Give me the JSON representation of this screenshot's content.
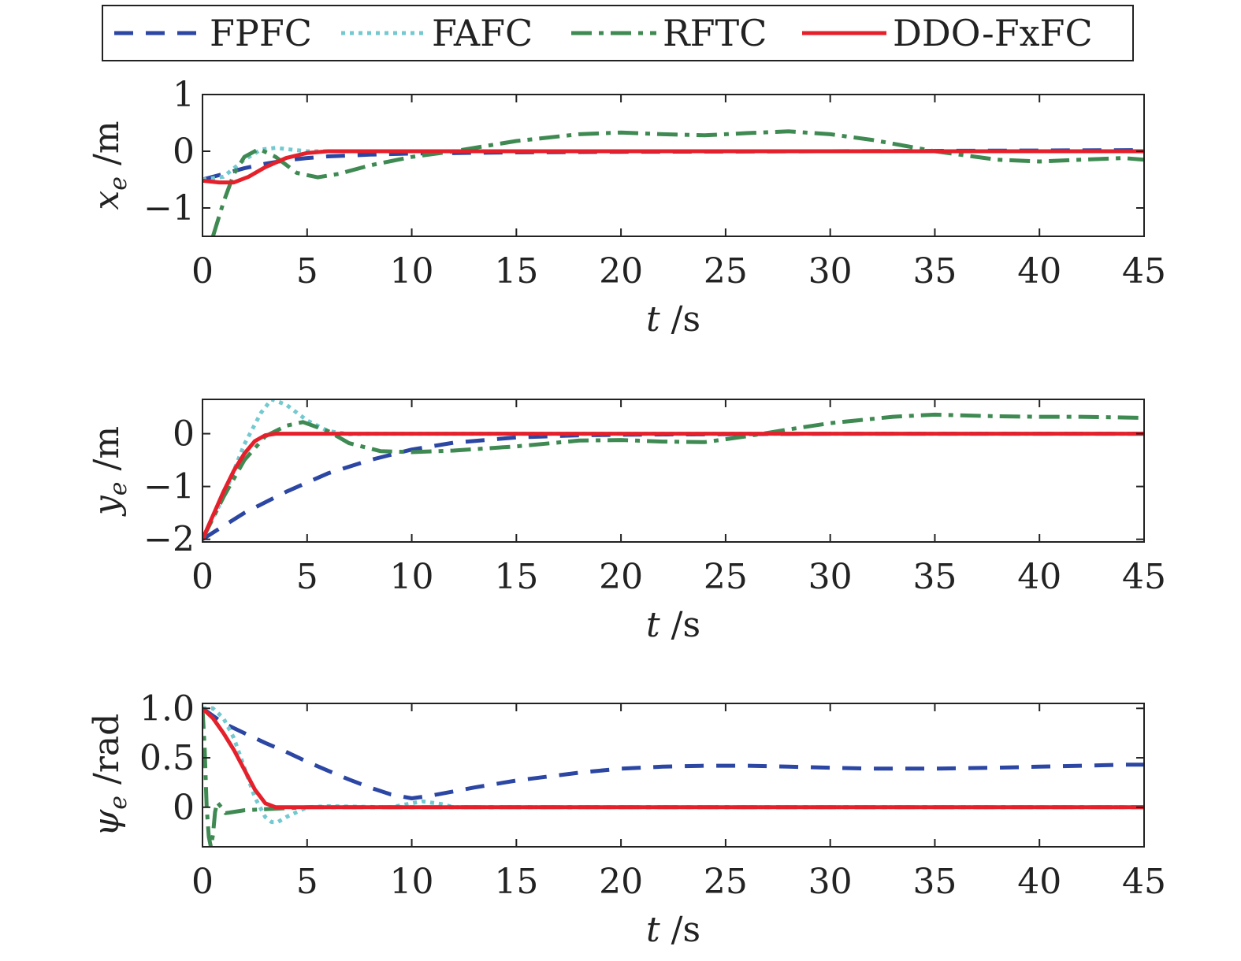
{
  "legend": [
    {
      "name": "FPFC",
      "color": "#2b46a3",
      "dash": "24 16",
      "width": 5
    },
    {
      "name": "FAFC",
      "color": "#72c9cf",
      "dash": "5 6",
      "width": 5
    },
    {
      "name": "RFTC",
      "color": "#3f8a52",
      "dash": "26 9 6 9",
      "width": 5
    },
    {
      "name": "DDO-FxFC",
      "color": "#e5202b",
      "dash": "",
      "width": 5
    }
  ],
  "chart_data": [
    {
      "type": "line",
      "xlabel": "t /s",
      "ylabel": "x_e /m",
      "ylabel_symbol": "x",
      "ylabel_sub": "e",
      "ylabel_unit": " /m",
      "xlim": [
        0,
        45
      ],
      "ylim": [
        -1.5,
        1
      ],
      "xticks": [
        0,
        5,
        10,
        15,
        20,
        25,
        30,
        35,
        40,
        45
      ],
      "yticks": [
        -1,
        0,
        1
      ],
      "ytick_labels": [
        "−1",
        "0",
        "1"
      ],
      "series": [
        {
          "name": "FPFC",
          "x": [
            0,
            1,
            2,
            3,
            4,
            5,
            6,
            8,
            10,
            15,
            20,
            30,
            45
          ],
          "y": [
            -0.5,
            -0.4,
            -0.3,
            -0.22,
            -0.16,
            -0.12,
            -0.09,
            -0.06,
            -0.04,
            -0.02,
            -0.01,
            0,
            0.02
          ]
        },
        {
          "name": "FAFC",
          "x": [
            0,
            1,
            2,
            2.8,
            3.5,
            4.2,
            5,
            6,
            8,
            45
          ],
          "y": [
            -0.5,
            -0.45,
            -0.15,
            0.03,
            0.06,
            0.03,
            0.0,
            0,
            0,
            0
          ]
        },
        {
          "name": "RFTC",
          "x": [
            0.5,
            1,
            1.5,
            2,
            2.7,
            3.5,
            4.5,
            5.5,
            6.5,
            8,
            10,
            12,
            15,
            18,
            20,
            22,
            24,
            26,
            28,
            30,
            32,
            35,
            38,
            40,
            42,
            44,
            45
          ],
          "y": [
            -1.5,
            -0.9,
            -0.4,
            -0.1,
            0.04,
            -0.1,
            -0.38,
            -0.46,
            -0.4,
            -0.25,
            -0.1,
            0.0,
            0.18,
            0.3,
            0.33,
            0.3,
            0.28,
            0.32,
            0.35,
            0.3,
            0.2,
            0.0,
            -0.15,
            -0.18,
            -0.15,
            -0.12,
            -0.15
          ]
        },
        {
          "name": "DDO-FxFC",
          "x": [
            0,
            0.8,
            1.5,
            2.2,
            3,
            4,
            5,
            6,
            8,
            45
          ],
          "y": [
            -0.52,
            -0.55,
            -0.55,
            -0.45,
            -0.28,
            -0.12,
            -0.03,
            0,
            0,
            0
          ]
        }
      ]
    },
    {
      "type": "line",
      "xlabel": "t /s",
      "ylabel": "y_e /m",
      "ylabel_symbol": "y",
      "ylabel_sub": "e",
      "ylabel_unit": " /m",
      "xlim": [
        0,
        45
      ],
      "ylim": [
        -2.05,
        0.65
      ],
      "xticks": [
        0,
        5,
        10,
        15,
        20,
        25,
        30,
        35,
        40,
        45
      ],
      "yticks": [
        -2,
        -1,
        0
      ],
      "ytick_labels": [
        "−2",
        "−1",
        "0"
      ],
      "series": [
        {
          "name": "FPFC",
          "x": [
            0,
            2,
            4,
            6,
            8,
            10,
            12,
            15,
            18,
            20,
            25,
            30,
            45
          ],
          "y": [
            -2.0,
            -1.5,
            -1.1,
            -0.75,
            -0.5,
            -0.3,
            -0.17,
            -0.07,
            -0.03,
            -0.02,
            -0.01,
            0,
            0
          ]
        },
        {
          "name": "FAFC",
          "x": [
            0,
            1,
            2,
            2.8,
            3.3,
            4,
            5,
            6,
            7,
            8,
            45
          ],
          "y": [
            -2.0,
            -1.2,
            -0.2,
            0.4,
            0.65,
            0.55,
            0.25,
            0.05,
            -0.01,
            0,
            0
          ]
        },
        {
          "name": "RFTC",
          "x": [
            0,
            1,
            2,
            3,
            4,
            4.8,
            6,
            7,
            8.5,
            10,
            12,
            15,
            18,
            20,
            22,
            24,
            26,
            28,
            30,
            33,
            35,
            38,
            40,
            42,
            45
          ],
          "y": [
            -2.0,
            -1.2,
            -0.5,
            -0.05,
            0.15,
            0.22,
            0.05,
            -0.18,
            -0.33,
            -0.35,
            -0.32,
            -0.24,
            -0.13,
            -0.12,
            -0.15,
            -0.16,
            -0.05,
            0.08,
            0.2,
            0.32,
            0.36,
            0.33,
            0.32,
            0.32,
            0.3
          ]
        },
        {
          "name": "DDO-FxFC",
          "x": [
            0,
            0.5,
            1,
            1.5,
            2,
            2.5,
            3,
            3.5,
            4,
            45
          ],
          "y": [
            -2.0,
            -1.55,
            -1.1,
            -0.7,
            -0.38,
            -0.14,
            -0.03,
            0,
            0,
            0
          ]
        }
      ]
    },
    {
      "type": "line",
      "xlabel": "t /s",
      "ylabel": "ψ_e /rad",
      "ylabel_symbol": "ψ",
      "ylabel_sub": "e",
      "ylabel_unit": " /rad",
      "xlim": [
        0,
        45
      ],
      "ylim": [
        -0.4,
        1.05
      ],
      "xticks": [
        0,
        5,
        10,
        15,
        20,
        25,
        30,
        35,
        40,
        45
      ],
      "yticks": [
        0,
        0.5,
        1.0
      ],
      "ytick_labels": [
        "0",
        "0.5",
        "1.0"
      ],
      "series": [
        {
          "name": "FPFC",
          "x": [
            0,
            1,
            2,
            3,
            4,
            5,
            6,
            7,
            8,
            9,
            10,
            11,
            13,
            15,
            18,
            20,
            22,
            24,
            26,
            28,
            30,
            32,
            35,
            38,
            40,
            42,
            44,
            45
          ],
          "y": [
            1.0,
            0.85,
            0.75,
            0.65,
            0.56,
            0.46,
            0.37,
            0.28,
            0.2,
            0.13,
            0.09,
            0.12,
            0.2,
            0.27,
            0.35,
            0.39,
            0.41,
            0.42,
            0.42,
            0.41,
            0.4,
            0.39,
            0.39,
            0.4,
            0.41,
            0.42,
            0.43,
            0.43
          ]
        },
        {
          "name": "FAFC",
          "x": [
            0,
            0.5,
            1,
            1.5,
            2,
            2.5,
            3,
            3.3,
            3.6,
            4,
            4.5,
            5,
            6,
            9,
            10.5,
            11.5,
            12,
            45
          ],
          "y": [
            1.0,
            1.0,
            0.9,
            0.7,
            0.4,
            0.1,
            -0.1,
            -0.15,
            -0.15,
            -0.1,
            -0.05,
            0,
            0.01,
            0,
            0.06,
            0.03,
            0,
            0
          ]
        },
        {
          "name": "RFTC",
          "x": [
            0,
            0.1,
            0.2,
            0.3,
            0.4,
            0.5,
            0.6,
            0.7,
            0.9,
            1.1,
            1.4,
            2,
            3,
            5,
            10,
            45
          ],
          "y": [
            1.0,
            0.6,
            0.0,
            -0.3,
            -0.4,
            -0.28,
            -0.05,
            0.05,
            0.0,
            -0.06,
            -0.05,
            -0.03,
            -0.02,
            0,
            0,
            0
          ]
        },
        {
          "name": "DDO-FxFC",
          "x": [
            0,
            0.5,
            1,
            1.5,
            2,
            2.5,
            3,
            3.5,
            4,
            45
          ],
          "y": [
            1.0,
            0.9,
            0.75,
            0.58,
            0.38,
            0.18,
            0.04,
            0.0,
            0,
            0
          ]
        }
      ]
    }
  ]
}
